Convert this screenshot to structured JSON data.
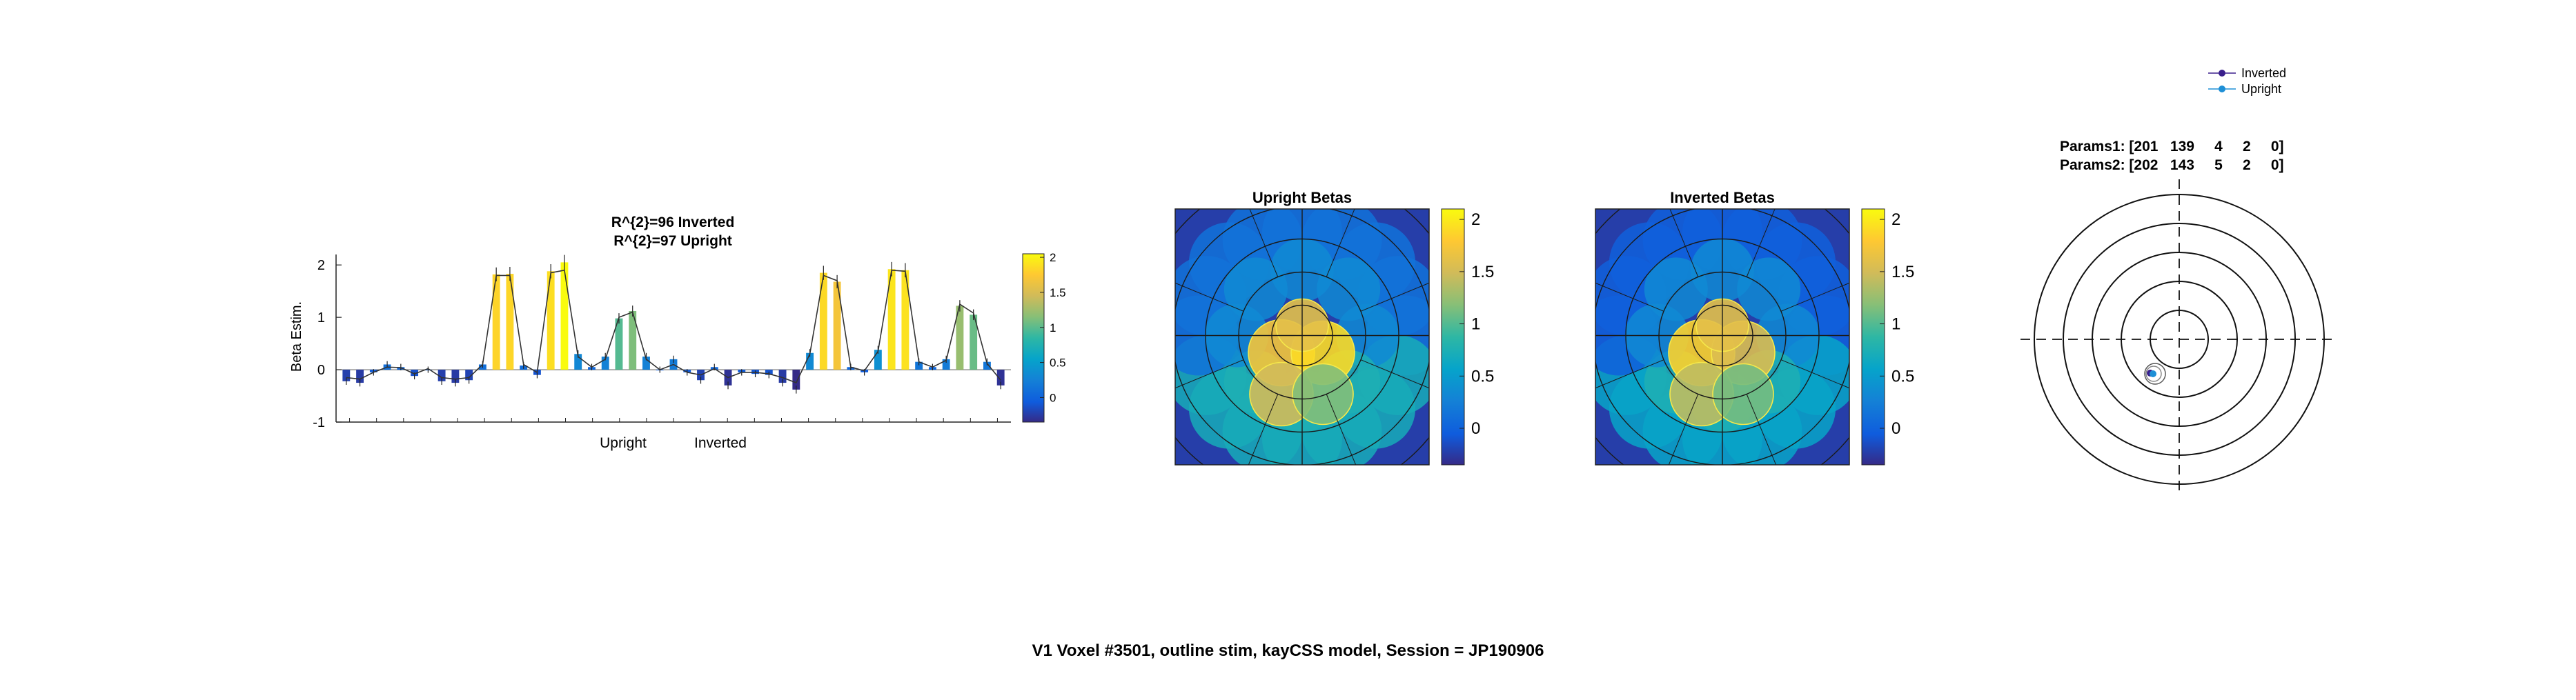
{
  "figure": {
    "suptitle": "V1 Voxel #3501, outline stim, kayCSS model, Session = JP190906"
  },
  "chart_data": [
    {
      "type": "bar",
      "title_lines": [
        "R^{2}=96 Inverted",
        "R^{2}=97 Upright"
      ],
      "ylabel": "Beta Estim.",
      "ylim": [
        -1,
        2.2
      ],
      "yticks": [
        -1,
        0,
        1,
        2
      ],
      "group_labels": [
        "Upright",
        "Inverted"
      ],
      "colormap": "parula",
      "color_limits": [
        -0.35,
        2.05
      ],
      "colorbar_ticks": [
        0,
        0.5,
        1,
        1.5,
        2
      ],
      "values": [
        -0.22,
        -0.25,
        -0.05,
        0.1,
        0.05,
        -0.12,
        0.0,
        -0.22,
        -0.25,
        -0.2,
        0.1,
        1.82,
        1.83,
        0.08,
        -0.1,
        1.88,
        2.05,
        0.3,
        0.05,
        0.25,
        0.98,
        1.12,
        0.25,
        0.0,
        0.2,
        -0.05,
        -0.2,
        0.05,
        -0.3,
        -0.05,
        -0.08,
        -0.1,
        -0.25,
        -0.38,
        0.32,
        1.85,
        1.68,
        0.05,
        -0.05,
        0.38,
        1.92,
        1.9,
        0.15,
        0.05,
        0.2,
        1.22,
        1.05,
        0.15,
        -0.3
      ],
      "model_fit": [
        -0.15,
        -0.18,
        -0.05,
        0.05,
        0.04,
        -0.08,
        0.02,
        -0.15,
        -0.18,
        -0.15,
        0.1,
        1.8,
        1.8,
        0.1,
        -0.05,
        1.85,
        1.9,
        0.25,
        0.05,
        0.2,
        1.0,
        1.1,
        0.2,
        0.0,
        0.1,
        -0.05,
        -0.1,
        0.02,
        -0.15,
        -0.05,
        -0.05,
        -0.08,
        -0.15,
        -0.25,
        0.3,
        1.8,
        1.7,
        0.05,
        -0.02,
        0.35,
        1.9,
        1.88,
        0.15,
        0.05,
        0.18,
        1.25,
        1.08,
        0.12,
        -0.2
      ]
    },
    {
      "type": "heatmap",
      "title": "Upright Betas",
      "colormap": "parula",
      "colorbar_ticks": [
        0,
        0.5,
        1,
        1.5,
        2
      ],
      "color_limits": [
        -0.35,
        2.1
      ]
    },
    {
      "type": "heatmap",
      "title": "Inverted Betas",
      "colormap": "parula",
      "colorbar_ticks": [
        0,
        0.5,
        1,
        1.5,
        2
      ],
      "color_limits": [
        -0.35,
        2.1
      ]
    },
    {
      "type": "scatter",
      "title_lines": [
        "Params1: [201   139     4     2     0]",
        "Params2: [202   143     5     2     0]"
      ],
      "legend": [
        "Inverted",
        "Upright"
      ],
      "legend_placement": "top-right",
      "series_colors": {
        "Inverted": "#3a1f8c",
        "Upright": "#1e8fd6"
      }
    }
  ]
}
